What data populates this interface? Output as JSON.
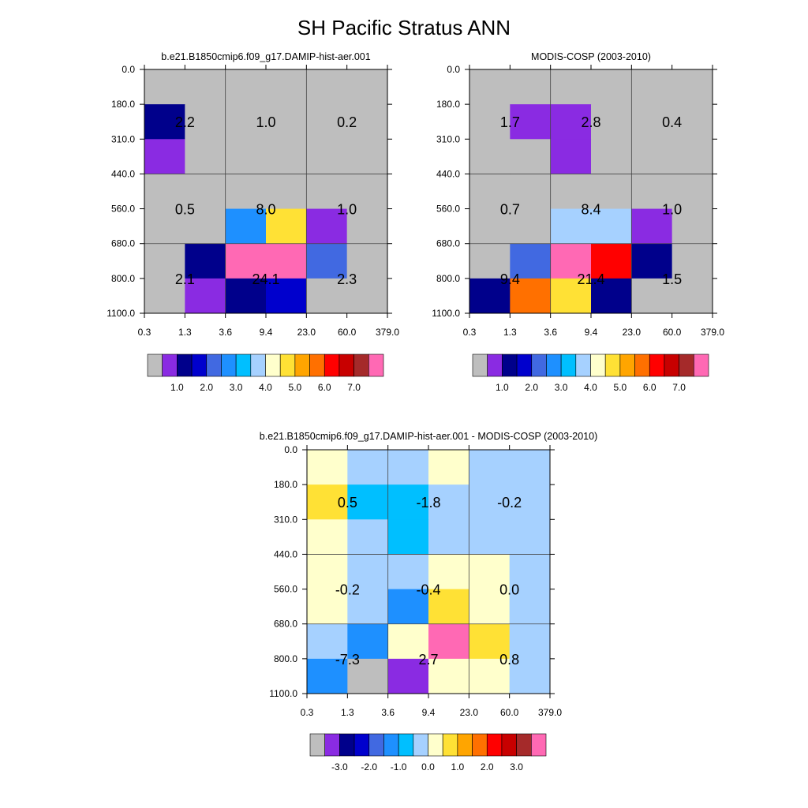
{
  "title": "SH Pacific Stratus ANN",
  "x_ticks": [
    "0.3",
    "1.3",
    "3.6",
    "9.4",
    "23.0",
    "60.0",
    "379.0"
  ],
  "y_ticks": [
    "0.0",
    "180.0",
    "310.0",
    "440.0",
    "560.0",
    "680.0",
    "800.0",
    "1100.0"
  ],
  "colors": {
    "missing": "#BEBEBE",
    "abs_palette": [
      "#BEBEBE",
      "#8A2BE2",
      "#00008B",
      "#0000CD",
      "#4169E1",
      "#1E90FF",
      "#00BFFF",
      "#A6D1FF",
      "#FFFFCC",
      "#FFE135",
      "#FFA500",
      "#FF7000",
      "#FF0000",
      "#C80000",
      "#A52A2A",
      "#FF69B4"
    ],
    "diff_palette": [
      "#BEBEBE",
      "#8A2BE2",
      "#00008B",
      "#0000CD",
      "#4169E1",
      "#1E90FF",
      "#00BFFF",
      "#A6D1FF",
      "#FFFFCC",
      "#FFE135",
      "#FFA500",
      "#FF7000",
      "#FF0000",
      "#C80000",
      "#A52A2A",
      "#FF69B4"
    ]
  },
  "colorbars": {
    "abs_labels": [
      "1.0",
      "2.0",
      "3.0",
      "4.0",
      "5.0",
      "6.0",
      "7.0"
    ],
    "diff_labels": [
      "-3.0",
      "-2.0",
      "-1.0",
      "0.0",
      "1.0",
      "2.0",
      "3.0"
    ]
  },
  "chart_data": [
    {
      "type": "heatmap",
      "title": "b.e21.B1850cmip6.f09_g17.DAMIP-hist-aer.001",
      "group_values": [
        [
          "2.2",
          "1.0",
          "0.2"
        ],
        [
          "0.5",
          "8.0",
          "1.0"
        ],
        [
          "2.1",
          "24.1",
          "2.3"
        ]
      ],
      "cells": [
        [
          0,
          0,
          0,
          0,
          0,
          0
        ],
        [
          2,
          0,
          0,
          0,
          0,
          0
        ],
        [
          1,
          0,
          0,
          0,
          0,
          0
        ],
        [
          0,
          0,
          0,
          0,
          0,
          0
        ],
        [
          0,
          0,
          5,
          9,
          1,
          0
        ],
        [
          0,
          2,
          15,
          15,
          4,
          0
        ],
        [
          0,
          1,
          2,
          3,
          0,
          0
        ]
      ]
    },
    {
      "type": "heatmap",
      "title": "MODIS-COSP (2003-2010)",
      "group_values": [
        [
          "1.7",
          "2.8",
          "0.4"
        ],
        [
          "0.7",
          "8.4",
          "1.0"
        ],
        [
          "9.4",
          "21.4",
          "1.5"
        ]
      ],
      "cells": [
        [
          0,
          0,
          0,
          0,
          0,
          0
        ],
        [
          0,
          1,
          1,
          0,
          0,
          0
        ],
        [
          0,
          0,
          1,
          0,
          0,
          0
        ],
        [
          0,
          0,
          0,
          0,
          0,
          0
        ],
        [
          0,
          0,
          7,
          7,
          1,
          0
        ],
        [
          0,
          4,
          15,
          12,
          2,
          0
        ],
        [
          2,
          11,
          9,
          2,
          0,
          0
        ]
      ]
    },
    {
      "type": "heatmap",
      "title": "b.e21.B1850cmip6.f09_g17.DAMIP-hist-aer.001 - MODIS-COSP (2003-2010)",
      "group_values": [
        [
          "0.5",
          "-1.8",
          "-0.2"
        ],
        [
          "-0.2",
          "-0.4",
          "0.0"
        ],
        [
          "-7.3",
          "2.7",
          "0.8"
        ]
      ],
      "cells": [
        [
          8,
          7,
          7,
          8,
          7,
          7
        ],
        [
          9,
          6,
          6,
          7,
          7,
          7
        ],
        [
          8,
          7,
          6,
          7,
          7,
          7
        ],
        [
          8,
          7,
          7,
          8,
          8,
          7
        ],
        [
          8,
          7,
          5,
          9,
          8,
          7
        ],
        [
          7,
          5,
          8,
          15,
          9,
          7
        ],
        [
          5,
          0,
          1,
          8,
          8,
          7
        ]
      ]
    }
  ]
}
